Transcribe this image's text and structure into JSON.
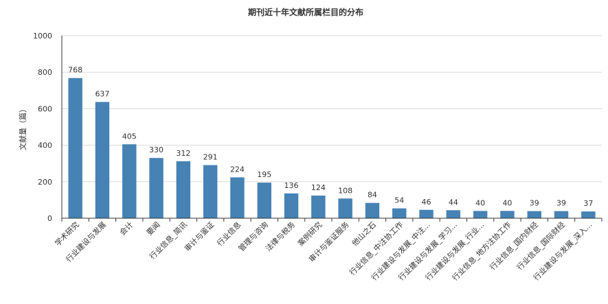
{
  "chart_data": {
    "type": "bar",
    "title": "期刊近十年文献所属栏目的分布",
    "ylabel": "文献量（篇）",
    "xlabel": "",
    "ylim": [
      0,
      1000
    ],
    "yticks": [
      0,
      200,
      400,
      600,
      800,
      1000
    ],
    "grid": true,
    "bar_color": "#4682b4",
    "categories": [
      "学术研究",
      "行业建设与发展",
      "会计",
      "要闻",
      "行业信息_简讯",
      "审计与鉴证",
      "行业信息",
      "管理与咨询",
      "法律与税务",
      "案例研究",
      "审计与鉴证服务",
      "他山之石",
      "行业信息_中注协工作",
      "行业建设与发展_中注...",
      "行业建设与发展_学习...",
      "行业建设与发展_行业...",
      "行业信息_地方注协工作",
      "行业信息_国内财经",
      "行业信息_国际财经",
      "行业建设与发展_深入..."
    ],
    "values": [
      768,
      637,
      405,
      330,
      312,
      291,
      224,
      195,
      136,
      124,
      108,
      84,
      54,
      46,
      44,
      40,
      40,
      39,
      39,
      37
    ]
  }
}
